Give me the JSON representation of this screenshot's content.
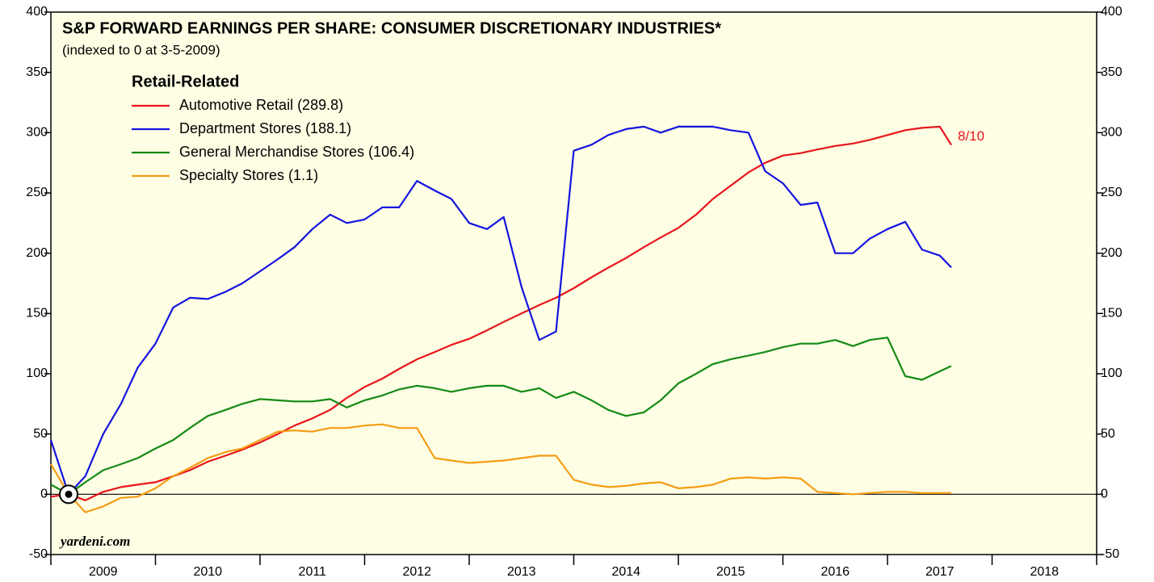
{
  "chart_data": {
    "type": "line",
    "title": "S&P FORWARD EARNINGS PER SHARE: CONSUMER DISCRETIONARY INDUSTRIES*",
    "subtitle": "(indexed to 0 at 3-5-2009)",
    "legend_title": "Retail-Related",
    "legend_position": "upper left",
    "annotation": "8/10",
    "source": "yardeni.com",
    "base_point": {
      "x": 2009.17,
      "y": 0
    },
    "categories": [
      "2009",
      "2010",
      "2011",
      "2012",
      "2013",
      "2014",
      "2015",
      "2016",
      "2017",
      "2018"
    ],
    "xlim": [
      2009,
      2019
    ],
    "xticks": [
      2009,
      2010,
      2011,
      2012,
      2013,
      2014,
      2015,
      2016,
      2017,
      2018,
      2019
    ],
    "ylim": [
      -50,
      400
    ],
    "yticks": [
      -50,
      0,
      50,
      100,
      150,
      200,
      250,
      300,
      350,
      400
    ],
    "y2lim": [
      -50,
      400
    ],
    "y2ticks": [
      -50,
      0,
      50,
      100,
      150,
      200,
      250,
      300,
      350,
      400
    ],
    "x": [
      2009,
      2009.17,
      2009.33,
      2009.5,
      2009.67,
      2009.83,
      2010,
      2010.17,
      2010.33,
      2010.5,
      2010.67,
      2010.83,
      2011,
      2011.17,
      2011.33,
      2011.5,
      2011.67,
      2011.83,
      2012,
      2012.17,
      2012.33,
      2012.5,
      2012.67,
      2012.83,
      2013,
      2013.17,
      2013.33,
      2013.5,
      2013.67,
      2013.83,
      2014,
      2014.17,
      2014.33,
      2014.5,
      2014.67,
      2014.83,
      2015,
      2015.17,
      2015.33,
      2015.5,
      2015.67,
      2015.83,
      2016,
      2016.17,
      2016.33,
      2016.5,
      2016.67,
      2016.83,
      2017,
      2017.17,
      2017.33,
      2017.5,
      2017.61
    ],
    "series": [
      {
        "name": "Automotive Retail (289.8)",
        "color": "#e8141b",
        "values": [
          -2,
          0,
          -5,
          2,
          6,
          8,
          10,
          15,
          20,
          27,
          32,
          37,
          43,
          50,
          57,
          63,
          70,
          80,
          89,
          96,
          104,
          112,
          118,
          124,
          129,
          136,
          143,
          150,
          157,
          163,
          171,
          180,
          188,
          196,
          205,
          213,
          221,
          232,
          245,
          256,
          267,
          275,
          281,
          283,
          286,
          289,
          291,
          294,
          298,
          302,
          304,
          305,
          289.8
        ]
      },
      {
        "name": "Department Stores (188.1)",
        "color": "#1414e0",
        "values": [
          45,
          0,
          15,
          50,
          75,
          105,
          125,
          155,
          163,
          162,
          168,
          175,
          185,
          195,
          205,
          220,
          232,
          225,
          228,
          238,
          238,
          260,
          252,
          245,
          225,
          220,
          230,
          172,
          128,
          135,
          285,
          290,
          298,
          303,
          305,
          300,
          305,
          305,
          305,
          302,
          300,
          268,
          258,
          240,
          242,
          200,
          200,
          212,
          220,
          226,
          203,
          198,
          188.1
        ]
      },
      {
        "name": "General Merchandise Stores (106.4)",
        "color": "#148a14",
        "values": [
          8,
          0,
          10,
          20,
          25,
          30,
          38,
          45,
          55,
          65,
          70,
          75,
          79,
          78,
          77,
          77,
          79,
          72,
          78,
          82,
          87,
          90,
          88,
          85,
          88,
          90,
          90,
          85,
          88,
          80,
          85,
          78,
          70,
          65,
          68,
          78,
          92,
          100,
          108,
          112,
          115,
          118,
          122,
          125,
          125,
          128,
          123,
          128,
          130,
          98,
          95,
          102,
          106.4
        ]
      },
      {
        "name": "Specialty Stores (1.1)",
        "color": "#f59c14",
        "values": [
          25,
          0,
          -15,
          -10,
          -3,
          -2,
          5,
          15,
          22,
          30,
          35,
          38,
          45,
          52,
          53,
          52,
          55,
          55,
          57,
          58,
          55,
          55,
          30,
          28,
          26,
          27,
          28,
          30,
          32,
          32,
          12,
          8,
          6,
          7,
          9,
          10,
          5,
          6,
          8,
          13,
          14,
          13,
          14,
          13,
          2,
          1,
          0,
          1,
          2,
          2,
          1,
          1,
          1.1
        ]
      }
    ]
  }
}
